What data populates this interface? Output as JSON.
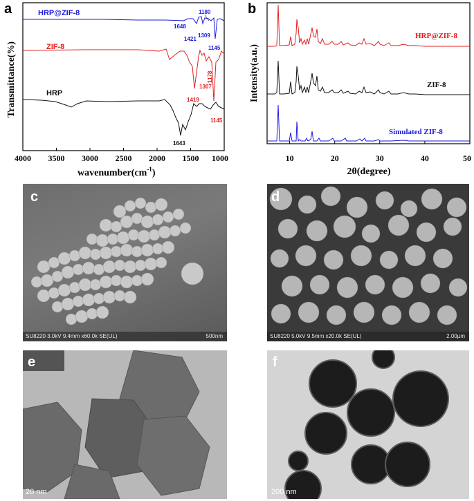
{
  "panels": {
    "a": "a",
    "b": "b",
    "c": "c",
    "d": "d",
    "e": "e",
    "f": "f"
  },
  "ftir": {
    "ylabel": "Transmittance(%)",
    "xlabel": "wavenumber(cm",
    "xlabel_sup": "-1",
    "xlabel_end": ")",
    "xticks": [
      "4000",
      "3500",
      "3000",
      "2500",
      "2000",
      "1500",
      "1000"
    ],
    "series_labels": [
      "HRP@ZIF-8",
      "ZIF-8",
      "HRP"
    ],
    "peaks": {
      "hrpzif": [
        "1180",
        "1648",
        "1421",
        "1309",
        "1145"
      ],
      "zif": [
        "1178",
        "1419",
        "1307",
        "1145"
      ],
      "hrp": [
        "1643"
      ]
    },
    "colors": {
      "hrpzif": "#1a1adb",
      "zif": "#e02020",
      "hrp": "#111111"
    }
  },
  "xrd": {
    "ylabel": "Intensity(a.u.)",
    "xlabel": "2θ(degree)",
    "xticks": [
      "10",
      "20",
      "30",
      "40",
      "50"
    ],
    "series_labels": [
      "HRP@ZIF-8",
      "ZIF-8",
      "Simulated ZIF-8"
    ],
    "colors": {
      "hrpzif": "#e02020",
      "zif": "#111111",
      "sim": "#1a1adb"
    }
  },
  "chart_data": [
    {
      "type": "line",
      "title": "",
      "xlabel": "wavenumber(cm-1)",
      "ylabel": "Transmittance(%)",
      "xlim": [
        4000,
        1000
      ],
      "reversed_x": true,
      "series": [
        {
          "name": "HRP@ZIF-8",
          "peaks_cm-1": [
            1648,
            1421,
            1309,
            1180,
            1145
          ]
        },
        {
          "name": "ZIF-8",
          "peaks_cm-1": [
            1419,
            1307,
            1178,
            1145
          ]
        },
        {
          "name": "HRP",
          "peaks_cm-1": [
            1643
          ]
        }
      ]
    },
    {
      "type": "line",
      "title": "",
      "xlabel": "2θ(degree)",
      "ylabel": "Intensity(a.u.)",
      "xlim": [
        5,
        50
      ],
      "series": [
        {
          "name": "HRP@ZIF-8",
          "peaks_2theta": [
            7.3,
            10.4,
            12.7,
            14.7,
            16.4,
            18.0,
            22.1,
            24.5,
            26.7,
            29.6,
            31.5,
            32.4
          ]
        },
        {
          "name": "ZIF-8",
          "peaks_2theta": [
            7.3,
            10.4,
            12.7,
            14.7,
            16.4,
            18.0,
            22.1,
            24.5,
            26.7,
            29.6,
            31.5,
            32.4
          ]
        },
        {
          "name": "Simulated ZIF-8",
          "peaks_2theta": [
            7.3,
            10.4,
            12.7,
            14.7,
            16.4,
            18.0,
            22.1,
            24.5,
            26.7,
            29.6,
            31.5,
            32.4
          ]
        }
      ]
    }
  ],
  "sem_c": {
    "info": "SU8220 3.0kV 9.4mm x60.0k SE(UL)",
    "scale": "500nm"
  },
  "sem_d": {
    "info": "SU8220 5.0kV 9.5mm x20.0k SE(UL)",
    "scale": "2.00μm"
  },
  "tem_e": {
    "scale": "20 nm"
  },
  "tem_f": {
    "scale": "200 nm"
  }
}
